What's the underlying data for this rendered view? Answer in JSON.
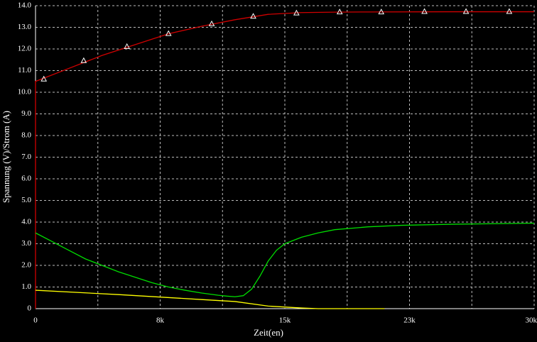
{
  "chart_data": {
    "type": "line",
    "x_label": "Zeit(en)",
    "y_label": "Spannung (V)/Strom (A)",
    "xlim": [
      0,
      30000
    ],
    "xticks": [
      0,
      {
        "value": 7500,
        "label": "8k"
      },
      {
        "value": 15000,
        "label": "15k"
      },
      {
        "value": 22500,
        "label": "23k"
      },
      {
        "value": 30000,
        "label": "30k"
      }
    ],
    "xgrid": [
      3750,
      11250,
      18750,
      26250
    ],
    "ylim": [
      0,
      14
    ],
    "yticks": [
      0,
      {
        "value": 1,
        "label": "1.0"
      },
      {
        "value": 2,
        "label": "2.0"
      },
      {
        "value": 3,
        "label": "3.0"
      },
      {
        "value": 4,
        "label": "4.0"
      },
      {
        "value": 5,
        "label": "5.0"
      },
      {
        "value": 6,
        "label": "6.0"
      },
      {
        "value": 7,
        "label": "7.0"
      },
      {
        "value": 8,
        "label": "8.0"
      },
      {
        "value": 9,
        "label": "9.0"
      },
      {
        "value": 10,
        "label": "10.0"
      },
      {
        "value": 11,
        "label": "11.0"
      },
      {
        "value": 12,
        "label": "12.0"
      },
      {
        "value": 13,
        "label": "13.0"
      },
      {
        "value": 14,
        "label": "14.0"
      }
    ],
    "grid": true,
    "series": [
      {
        "color": "#d00000",
        "x": [
          0,
          0,
          2000,
          4000,
          6000,
          8000,
          10000,
          12000,
          14000,
          16000,
          18000,
          20000,
          25000,
          30000
        ],
        "values": [
          0,
          10.5,
          11.1,
          11.7,
          12.2,
          12.7,
          13.05,
          13.35,
          13.6,
          13.68,
          13.7,
          13.71,
          13.72,
          13.72
        ],
        "marker_x": [
          500,
          2900,
          5500,
          8000,
          10600,
          13100,
          15700,
          18300,
          20800,
          23400,
          25900,
          28500
        ],
        "marker_values": [
          10.6,
          11.45,
          12.1,
          12.7,
          13.15,
          13.5,
          13.65,
          13.7,
          13.7,
          13.72,
          13.72,
          13.72
        ]
      },
      {
        "color": "#00dd00",
        "x": [
          0,
          1000,
          2000,
          3000,
          4000,
          5000,
          6000,
          7000,
          8000,
          9000,
          10000,
          11000,
          11500,
          12000,
          12500,
          13000,
          13500,
          14000,
          14500,
          15000,
          16000,
          17000,
          18000,
          20000,
          22000,
          25000,
          30000
        ],
        "values": [
          3.5,
          3.1,
          2.7,
          2.3,
          2.0,
          1.7,
          1.45,
          1.2,
          1.0,
          0.85,
          0.72,
          0.62,
          0.58,
          0.55,
          0.6,
          0.9,
          1.5,
          2.2,
          2.7,
          3.0,
          3.3,
          3.5,
          3.65,
          3.78,
          3.85,
          3.9,
          3.95
        ]
      },
      {
        "color": "#ffff00",
        "x": [
          0,
          5000,
          10000,
          12000,
          14000,
          16000,
          17000,
          21000
        ],
        "values": [
          0.85,
          0.65,
          0.42,
          0.33,
          0.12,
          0.03,
          0.0,
          0.0
        ]
      }
    ]
  }
}
